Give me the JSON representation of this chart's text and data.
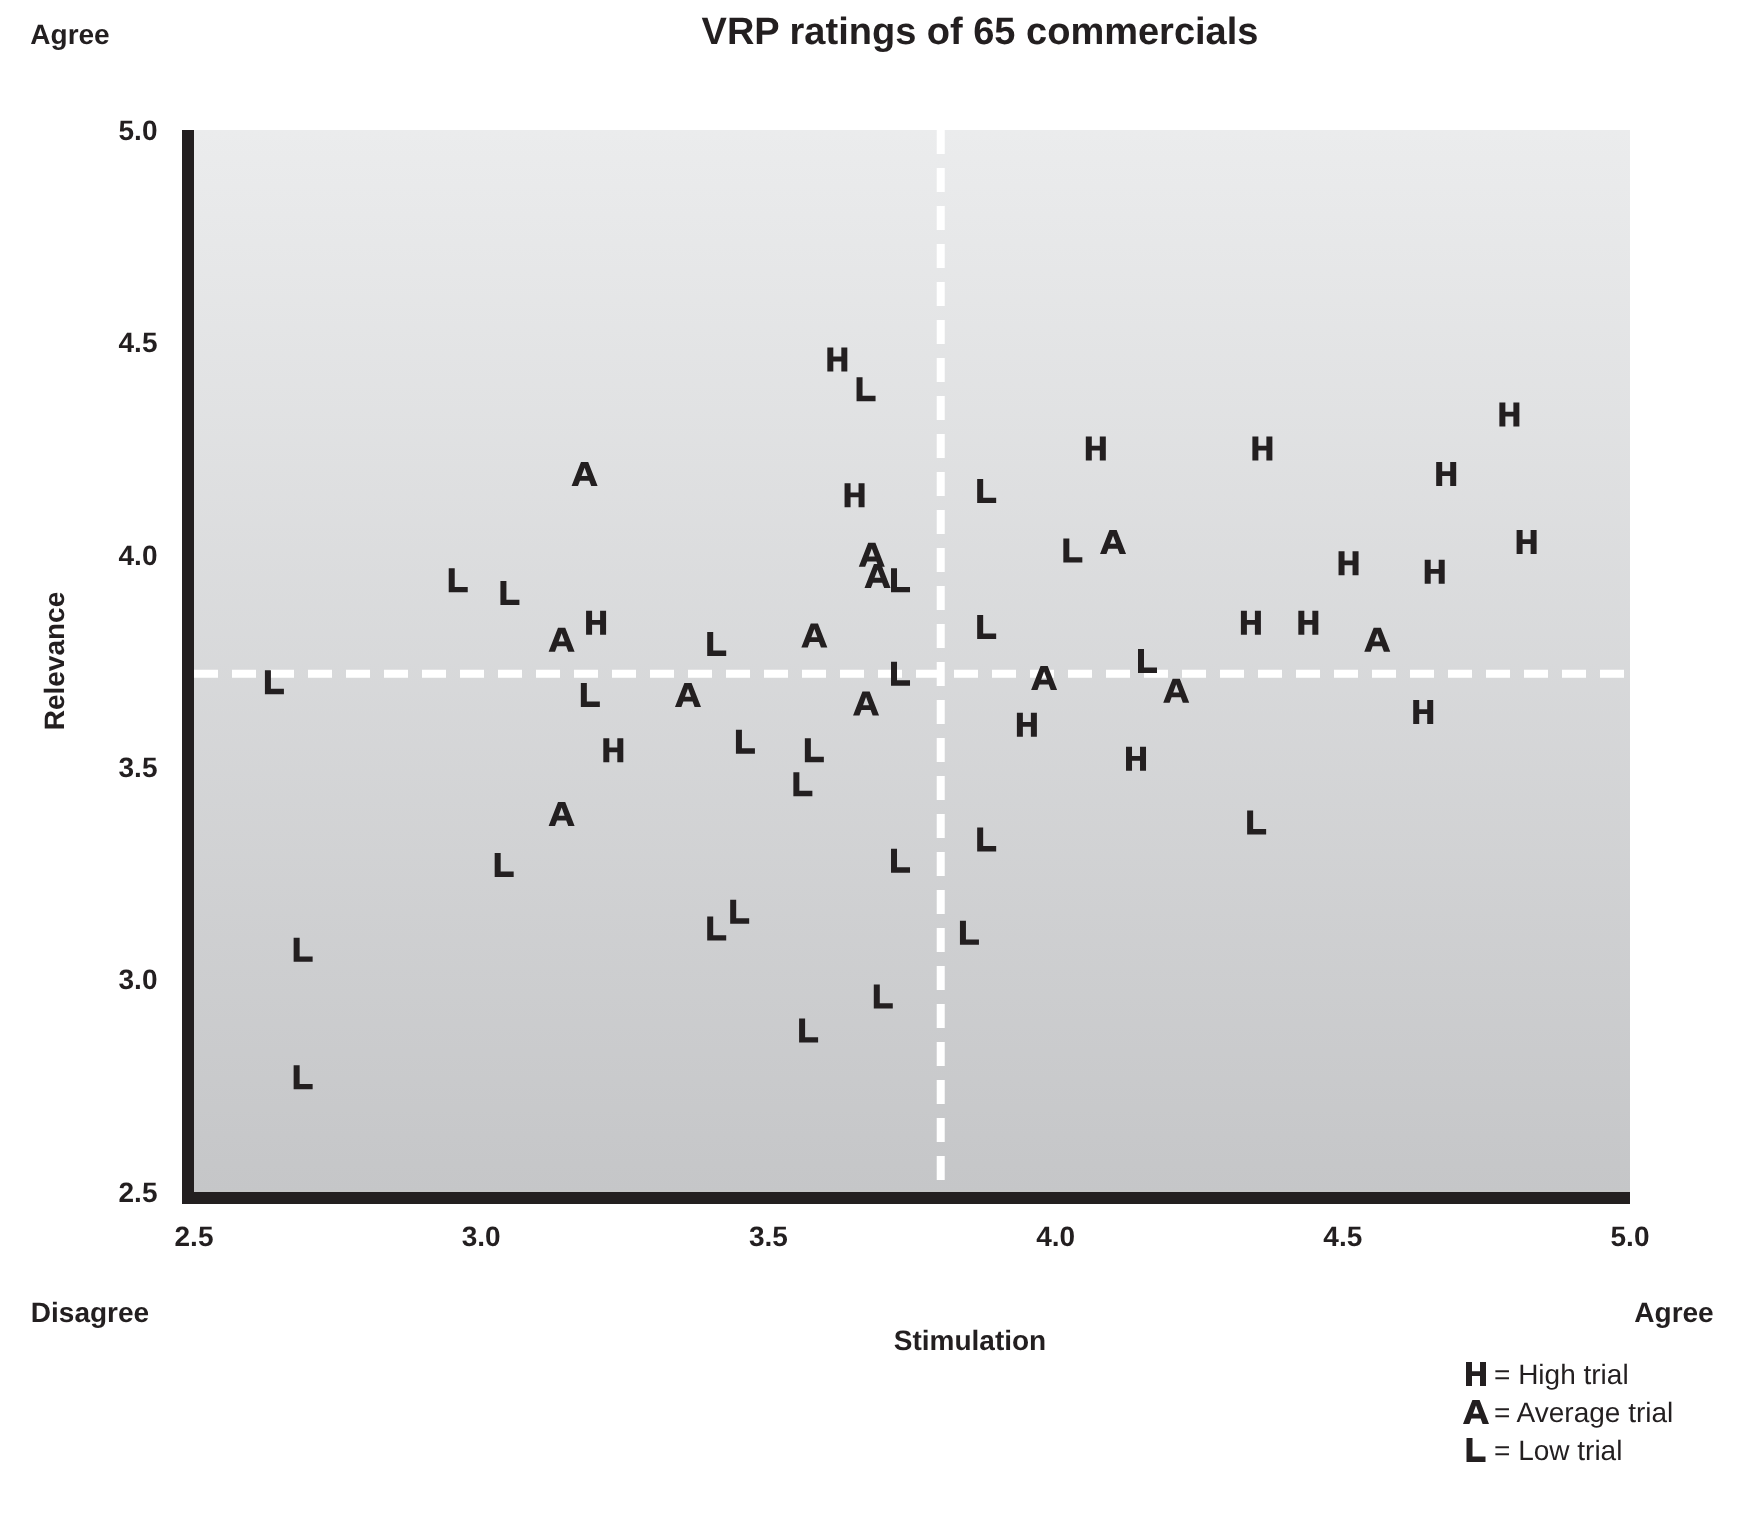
{
  "chart_data": {
    "type": "scatter",
    "title": "VRP ratings of 65 commercials",
    "xlabel": "Stimulation",
    "ylabel": "Relevance",
    "annotations": [
      "Agree",
      "Disagree",
      "Agree"
    ],
    "xlim": [
      2.5,
      5.0
    ],
    "ylim": [
      2.5,
      5.0
    ],
    "xticks": [
      2.5,
      {
        "value": 3,
        "label": "3.0"
      },
      3.5,
      {
        "value": 4,
        "label": "4.0"
      },
      4.5,
      {
        "value": 5,
        "label": "5.0"
      }
    ],
    "yticks": [
      2.5,
      {
        "value": 3,
        "label": "3.0"
      },
      3.5,
      {
        "value": 4,
        "label": "4.0"
      },
      4.5,
      {
        "value": 5,
        "label": "5.0"
      }
    ],
    "grid": false,
    "legend": "bottom right",
    "ref_lines": [
      {
        "axis": "x",
        "value": 3.8,
        "color": "#ffffff",
        "line_style": "dashed"
      },
      {
        "axis": "y",
        "value": 3.72,
        "color": "#ffffff",
        "line_style": "dashed"
      }
    ],
    "series": [
      {
        "name": "= High trial",
        "color": "#231f20",
        "x": [
          3.62,
          3.65,
          3.2,
          3.23,
          4.07,
          4.36,
          4.79,
          4.68,
          4.82,
          4.51,
          4.66,
          4.34,
          4.44,
          3.95,
          4.14,
          4.64
        ],
        "values": [
          4.46,
          4.14,
          3.84,
          3.54,
          4.25,
          4.25,
          4.33,
          4.19,
          4.03,
          3.98,
          3.96,
          3.84,
          3.84,
          3.6,
          3.52,
          3.63
        ]
      },
      {
        "name": "= Average trial",
        "color": "#231f20",
        "x": [
          3.18,
          3.68,
          3.69,
          4.1,
          3.14,
          3.58,
          3.36,
          3.67,
          3.98,
          4.21,
          4.56,
          3.14
        ],
        "values": [
          4.19,
          4.0,
          3.95,
          4.03,
          3.8,
          3.81,
          3.67,
          3.65,
          3.71,
          3.68,
          3.8,
          3.39
        ]
      },
      {
        "name": "= Low trial",
        "color": "#231f20",
        "x": [
          3.67,
          3.88,
          4.03,
          2.96,
          3.05,
          3.73,
          3.41,
          3.88,
          3.73,
          4.16,
          2.64,
          3.19,
          3.46,
          3.58,
          3.56,
          3.88,
          3.73,
          4.35,
          3.04,
          2.69,
          3.45,
          3.41,
          3.85,
          3.7,
          3.57,
          2.69
        ],
        "values": [
          4.39,
          4.15,
          4.01,
          3.94,
          3.91,
          3.94,
          3.79,
          3.83,
          3.72,
          3.75,
          3.7,
          3.67,
          3.56,
          3.54,
          3.46,
          3.33,
          3.28,
          3.37,
          3.27,
          3.07,
          3.16,
          3.12,
          3.11,
          2.96,
          2.88,
          2.77
        ]
      }
    ]
  }
}
